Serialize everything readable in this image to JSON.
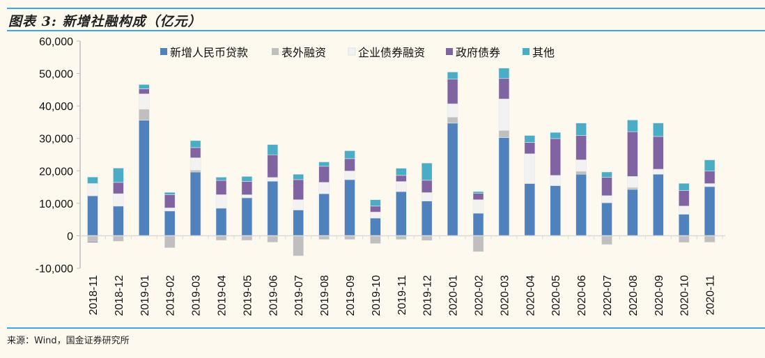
{
  "title": "图表 3:   新增社融构成（亿元）",
  "source": "来源：Wind，国金证券研究所",
  "chart_data": {
    "type": "bar",
    "stacked": true,
    "title": "新增社融构成（亿元）",
    "xlabel": "",
    "ylabel": "",
    "ylim": [
      -10000,
      60000
    ],
    "yticks": [
      60000,
      50000,
      40000,
      30000,
      20000,
      10000,
      0,
      -10000
    ],
    "ytick_labels": [
      "60,000",
      "50,000",
      "40,000",
      "30,000",
      "20,000",
      "10,000",
      "0",
      "-10,000"
    ],
    "legend_position": "top",
    "categories": [
      "2018-11",
      "2018-12",
      "2019-01",
      "2019-02",
      "2019-03",
      "2019-04",
      "2019-05",
      "2019-06",
      "2019-07",
      "2019-08",
      "2019-09",
      "2019-10",
      "2019-11",
      "2019-12",
      "2020-01",
      "2020-02",
      "2020-03",
      "2020-04",
      "2020-05",
      "2020-06",
      "2020-07",
      "2020-08",
      "2020-09",
      "2020-10",
      "2020-11"
    ],
    "series": [
      {
        "name": "新增人民币贷款",
        "color": "#4F81BD",
        "values": [
          12300,
          9150,
          35600,
          7650,
          19650,
          8500,
          11700,
          16800,
          7950,
          12950,
          17300,
          5450,
          13600,
          10700,
          34700,
          6950,
          30250,
          16100,
          15450,
          18950,
          10150,
          14300,
          18950,
          6650,
          15150
        ]
      },
      {
        "name": "表外融资",
        "color": "#BFBFBF",
        "values": [
          -1800,
          -1700,
          3400,
          -3700,
          570,
          -1400,
          -1400,
          -2000,
          -6200,
          -1150,
          -1150,
          -2400,
          -1150,
          -1450,
          1850,
          -4900,
          2200,
          0,
          0,
          930,
          -2700,
          570,
          0,
          -2050,
          -2000
        ]
      },
      {
        "name": "企业债券融资",
        "color": "#F2F2F2",
        "values": [
          3800,
          3800,
          4700,
          930,
          3800,
          4150,
          930,
          1150,
          3150,
          3500,
          2650,
          1850,
          3100,
          2600,
          4100,
          4150,
          9700,
          9150,
          3150,
          3500,
          2200,
          3400,
          1550,
          2500,
          930
        ]
      },
      {
        "name": "政府债券",
        "color": "#8064A2",
        "values": [
          -300,
          3500,
          1600,
          4100,
          3150,
          4400,
          4100,
          7000,
          6200,
          4950,
          3800,
          1850,
          1900,
          3800,
          7600,
          1950,
          6300,
          3500,
          11350,
          7500,
          5650,
          13800,
          10100,
          4800,
          3850
        ]
      },
      {
        "name": "其他",
        "color": "#4BACC6",
        "values": [
          2000,
          4400,
          1300,
          700,
          2150,
          1000,
          1550,
          3150,
          1650,
          1350,
          2450,
          1950,
          2200,
          5300,
          2200,
          570,
          3200,
          2150,
          1900,
          3850,
          1650,
          3600,
          4150,
          2200,
          3450
        ]
      }
    ]
  }
}
